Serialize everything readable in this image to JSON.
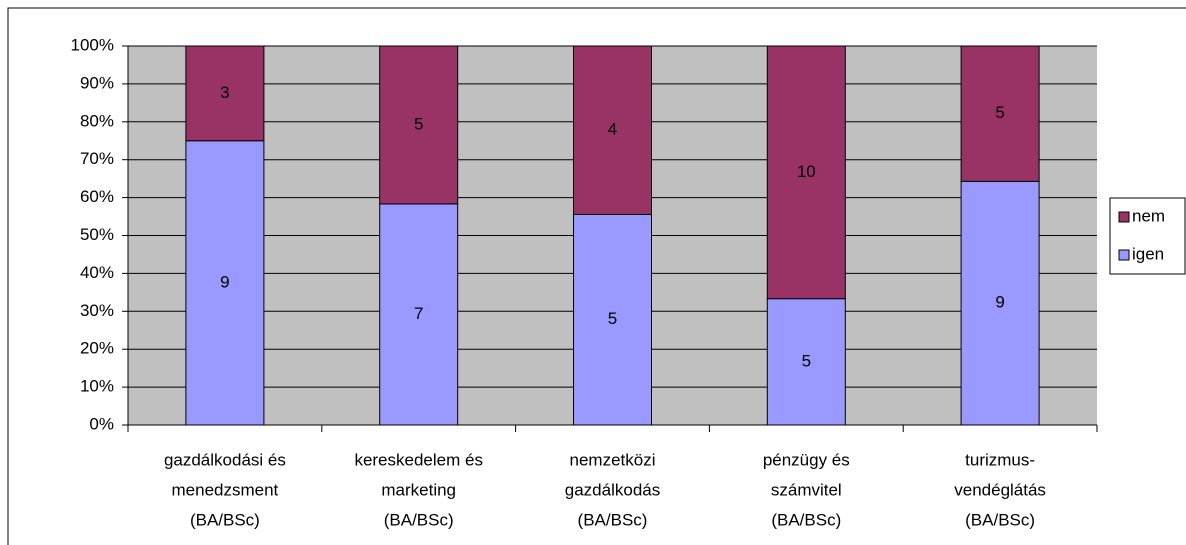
{
  "chart_data": {
    "type": "bar",
    "stacked": "percent",
    "categories": [
      [
        "gazdálkodási és",
        "menedzsment",
        "(BA/BSc)"
      ],
      [
        "kereskedelem és",
        "marketing",
        "(BA/BSc)"
      ],
      [
        "nemzetközi",
        "gazdálkodás",
        "(BA/BSc)"
      ],
      [
        "pénzügy és",
        "számvitel",
        "(BA/BSc)"
      ],
      [
        "turizmus-",
        "vendéglátás",
        "(BA/BSc)"
      ]
    ],
    "series": [
      {
        "name": "igen",
        "color": "#9999ff",
        "values": [
          9,
          7,
          5,
          5,
          9
        ]
      },
      {
        "name": "nem",
        "color": "#993366",
        "values": [
          3,
          5,
          4,
          10,
          5
        ]
      }
    ],
    "ylim": [
      0,
      100
    ],
    "yticks": [
      {
        "value": 0,
        "label": "0%"
      },
      {
        "value": 10,
        "label": "10%"
      },
      {
        "value": 20,
        "label": "20%"
      },
      {
        "value": 30,
        "label": "30%"
      },
      {
        "value": 40,
        "label": "40%"
      },
      {
        "value": 50,
        "label": "50%"
      },
      {
        "value": 60,
        "label": "60%"
      },
      {
        "value": 70,
        "label": "70%"
      },
      {
        "value": 80,
        "label": "80%"
      },
      {
        "value": 90,
        "label": "90%"
      },
      {
        "value": 100,
        "label": "100%"
      }
    ],
    "grid": true,
    "legend": "right",
    "plot_background": "#c0c0c0"
  }
}
